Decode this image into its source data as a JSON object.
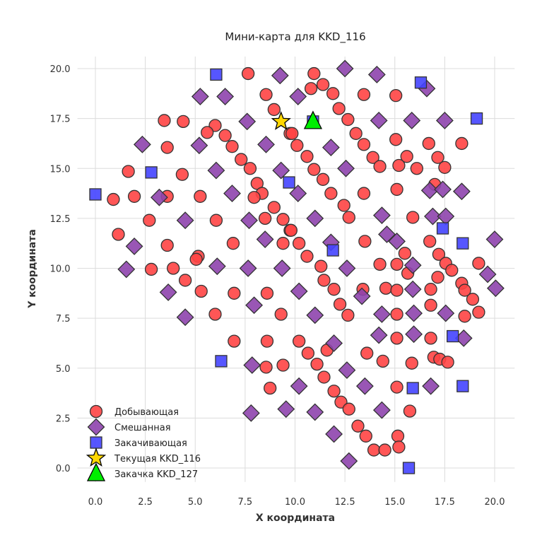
{
  "chart_data": {
    "type": "scatter",
    "title": "Мини-карта для KKD_116",
    "xlabel": "X координата",
    "ylabel": "Y координата",
    "xlim": [
      -0.9,
      21.0
    ],
    "ylim": [
      -0.7,
      20.6
    ],
    "grid": true,
    "legend_position": "bottom-left",
    "xticks": [
      "0.0",
      "2.5",
      "5.0",
      "7.5",
      "10.0",
      "12.5",
      "15.0",
      "17.5",
      "20.0"
    ],
    "yticks": [
      "0.0",
      "2.5",
      "5.0",
      "7.5",
      "10.0",
      "12.5",
      "15.0",
      "17.5",
      "20.0"
    ],
    "xtick_values": [
      0,
      2.5,
      5,
      7.5,
      10,
      12.5,
      15,
      17.5,
      20
    ],
    "ytick_values": [
      0,
      2.5,
      5,
      7.5,
      10,
      12.5,
      15,
      17.5,
      20
    ],
    "series": [
      {
        "name": "Добывающая",
        "marker": "circle",
        "color": "#ff4444",
        "points": [
          [
            7.65,
            19.75
          ],
          [
            8.55,
            18.7
          ],
          [
            8.95,
            17.95
          ],
          [
            9.75,
            16.75
          ],
          [
            3.45,
            17.4
          ],
          [
            4.4,
            17.35
          ],
          [
            6.0,
            17.15
          ],
          [
            5.6,
            16.8
          ],
          [
            6.5,
            16.65
          ],
          [
            3.6,
            16.05
          ],
          [
            6.85,
            16.1
          ],
          [
            7.3,
            15.45
          ],
          [
            7.75,
            15.0
          ],
          [
            1.65,
            14.85
          ],
          [
            4.35,
            14.7
          ],
          [
            8.1,
            14.25
          ],
          [
            8.35,
            13.75
          ],
          [
            7.95,
            13.55
          ],
          [
            0.9,
            13.45
          ],
          [
            1.95,
            13.6
          ],
          [
            3.6,
            13.6
          ],
          [
            5.25,
            13.6
          ],
          [
            8.95,
            13.05
          ],
          [
            2.7,
            12.4
          ],
          [
            6.05,
            12.4
          ],
          [
            8.5,
            12.5
          ],
          [
            9.4,
            12.45
          ],
          [
            9.75,
            11.9
          ],
          [
            1.15,
            11.7
          ],
          [
            3.6,
            11.15
          ],
          [
            6.9,
            11.25
          ],
          [
            9.4,
            11.25
          ],
          [
            5.15,
            10.6
          ],
          [
            5.05,
            10.45
          ],
          [
            10.95,
            19.75
          ],
          [
            10.8,
            19.0
          ],
          [
            11.4,
            19.2
          ],
          [
            11.9,
            18.75
          ],
          [
            13.45,
            18.7
          ],
          [
            15.05,
            18.65
          ],
          [
            12.2,
            18.0
          ],
          [
            12.65,
            17.45
          ],
          [
            9.85,
            16.75
          ],
          [
            10.1,
            16.15
          ],
          [
            13.05,
            16.75
          ],
          [
            15.05,
            16.45
          ],
          [
            16.7,
            16.25
          ],
          [
            18.35,
            16.25
          ],
          [
            10.6,
            15.6
          ],
          [
            13.45,
            16.2
          ],
          [
            13.9,
            15.55
          ],
          [
            14.25,
            15.1
          ],
          [
            15.2,
            15.15
          ],
          [
            15.6,
            15.6
          ],
          [
            16.1,
            15.0
          ],
          [
            17.15,
            15.55
          ],
          [
            17.5,
            15.05
          ],
          [
            10.95,
            14.95
          ],
          [
            11.4,
            14.45
          ],
          [
            11.8,
            13.75
          ],
          [
            13.45,
            13.75
          ],
          [
            15.1,
            13.95
          ],
          [
            17.0,
            14.2
          ],
          [
            12.45,
            13.15
          ],
          [
            12.7,
            12.55
          ],
          [
            15.9,
            12.55
          ],
          [
            9.8,
            11.9
          ],
          [
            10.2,
            11.25
          ],
          [
            10.6,
            10.6
          ],
          [
            13.5,
            11.35
          ],
          [
            16.75,
            11.35
          ],
          [
            17.2,
            10.7
          ],
          [
            15.5,
            10.75
          ],
          [
            11.3,
            10.1
          ],
          [
            14.25,
            10.2
          ],
          [
            15.1,
            10.2
          ],
          [
            17.55,
            10.25
          ],
          [
            19.2,
            10.25
          ],
          [
            2.8,
            9.95
          ],
          [
            3.9,
            10.0
          ],
          [
            4.5,
            9.4
          ],
          [
            5.3,
            8.85
          ],
          [
            6.95,
            8.75
          ],
          [
            8.6,
            8.75
          ],
          [
            6.0,
            7.7
          ],
          [
            9.3,
            7.7
          ],
          [
            6.95,
            6.35
          ],
          [
            8.6,
            6.35
          ],
          [
            8.55,
            5.05
          ],
          [
            9.4,
            5.15
          ],
          [
            8.75,
            4.0
          ],
          [
            15.65,
            9.75
          ],
          [
            11.45,
            9.4
          ],
          [
            11.95,
            8.95
          ],
          [
            13.4,
            8.95
          ],
          [
            14.55,
            9.0
          ],
          [
            15.1,
            8.9
          ],
          [
            16.8,
            8.95
          ],
          [
            17.15,
            9.55
          ],
          [
            17.85,
            9.9
          ],
          [
            18.35,
            9.25
          ],
          [
            18.5,
            8.9
          ],
          [
            18.9,
            8.45
          ],
          [
            19.2,
            7.8
          ],
          [
            18.5,
            7.6
          ],
          [
            16.8,
            8.15
          ],
          [
            12.25,
            8.2
          ],
          [
            12.65,
            7.65
          ],
          [
            15.1,
            7.7
          ],
          [
            10.2,
            6.35
          ],
          [
            10.65,
            5.75
          ],
          [
            11.1,
            5.2
          ],
          [
            11.6,
            5.9
          ],
          [
            11.45,
            4.55
          ],
          [
            11.95,
            3.85
          ],
          [
            12.3,
            3.3
          ],
          [
            12.7,
            2.95
          ],
          [
            13.6,
            5.75
          ],
          [
            14.4,
            5.35
          ],
          [
            15.1,
            6.5
          ],
          [
            16.8,
            6.5
          ],
          [
            16.95,
            5.55
          ],
          [
            17.25,
            5.45
          ],
          [
            17.65,
            5.3
          ],
          [
            15.85,
            5.25
          ],
          [
            15.1,
            4.05
          ],
          [
            15.75,
            2.85
          ],
          [
            13.15,
            2.1
          ],
          [
            13.55,
            1.6
          ],
          [
            13.95,
            0.9
          ],
          [
            14.5,
            0.9
          ],
          [
            15.15,
            1.6
          ],
          [
            15.2,
            1.05
          ]
        ]
      },
      {
        "name": "Смешанная",
        "marker": "diamond",
        "color": "#8e44ad",
        "points": [
          [
            12.5,
            20.0
          ],
          [
            9.25,
            19.65
          ],
          [
            14.1,
            19.7
          ],
          [
            5.25,
            18.6
          ],
          [
            6.5,
            18.6
          ],
          [
            10.15,
            18.6
          ],
          [
            16.6,
            19.0
          ],
          [
            7.6,
            17.35
          ],
          [
            14.2,
            17.4
          ],
          [
            15.85,
            17.4
          ],
          [
            17.5,
            17.4
          ],
          [
            2.35,
            16.2
          ],
          [
            5.2,
            16.15
          ],
          [
            8.55,
            16.2
          ],
          [
            11.8,
            16.05
          ],
          [
            6.05,
            14.9
          ],
          [
            9.3,
            14.9
          ],
          [
            12.55,
            15.0
          ],
          [
            3.2,
            13.55
          ],
          [
            6.85,
            13.75
          ],
          [
            10.15,
            13.75
          ],
          [
            16.75,
            13.9
          ],
          [
            17.4,
            13.95
          ],
          [
            18.35,
            13.85
          ],
          [
            4.5,
            12.4
          ],
          [
            7.7,
            12.4
          ],
          [
            11.0,
            12.5
          ],
          [
            14.35,
            12.65
          ],
          [
            16.9,
            12.6
          ],
          [
            17.55,
            12.6
          ],
          [
            1.95,
            11.1
          ],
          [
            8.5,
            11.45
          ],
          [
            11.8,
            11.3
          ],
          [
            14.6,
            11.7
          ],
          [
            15.1,
            11.35
          ],
          [
            20.0,
            11.45
          ],
          [
            1.55,
            9.95
          ],
          [
            6.1,
            10.1
          ],
          [
            7.65,
            10.0
          ],
          [
            9.35,
            10.0
          ],
          [
            12.6,
            10.0
          ],
          [
            15.9,
            10.15
          ],
          [
            19.65,
            9.7
          ],
          [
            20.05,
            9.0
          ],
          [
            3.65,
            8.8
          ],
          [
            10.2,
            8.85
          ],
          [
            15.9,
            8.95
          ],
          [
            13.35,
            8.6
          ],
          [
            4.5,
            7.55
          ],
          [
            7.95,
            8.15
          ],
          [
            11.0,
            7.65
          ],
          [
            14.35,
            7.7
          ],
          [
            15.95,
            7.75
          ],
          [
            17.55,
            7.75
          ],
          [
            14.2,
            6.65
          ],
          [
            15.95,
            6.7
          ],
          [
            18.45,
            6.5
          ],
          [
            11.95,
            6.25
          ],
          [
            7.85,
            5.15
          ],
          [
            12.6,
            4.9
          ],
          [
            10.2,
            4.1
          ],
          [
            13.5,
            4.1
          ],
          [
            16.8,
            4.1
          ],
          [
            9.55,
            2.95
          ],
          [
            7.8,
            2.75
          ],
          [
            11.0,
            2.8
          ],
          [
            14.35,
            2.9
          ],
          [
            11.95,
            1.7
          ],
          [
            12.7,
            0.35
          ]
        ]
      },
      {
        "name": "Закачивающая",
        "marker": "square",
        "color": "#4444ff",
        "points": [
          [
            6.05,
            19.7
          ],
          [
            16.3,
            19.3
          ],
          [
            19.1,
            17.5
          ],
          [
            2.8,
            14.8
          ],
          [
            0.0,
            13.7
          ],
          [
            9.7,
            14.3
          ],
          [
            17.4,
            12.0
          ],
          [
            18.4,
            11.25
          ],
          [
            11.9,
            10.9
          ],
          [
            6.3,
            5.35
          ],
          [
            17.9,
            6.6
          ],
          [
            15.9,
            4.0
          ],
          [
            18.4,
            4.1
          ],
          [
            15.7,
            0.0
          ],
          [
            10.9,
            17.35
          ]
        ]
      },
      {
        "name": "Текущая KKD_116",
        "marker": "star",
        "color": "#ffd700",
        "points": [
          [
            9.3,
            17.35
          ]
        ]
      },
      {
        "name": "Закачка KKD_127",
        "marker": "triangle",
        "color": "#00ee00",
        "points": [
          [
            10.9,
            17.35
          ]
        ]
      }
    ]
  }
}
